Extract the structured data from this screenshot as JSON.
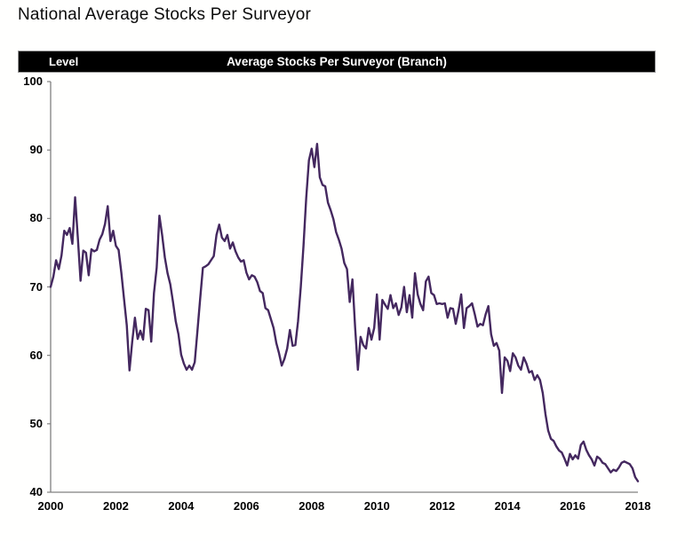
{
  "page": {
    "title": "National Average Stocks Per Surveyor",
    "background": "#fffffe"
  },
  "header_bar": {
    "left_label": "Level",
    "center_label": "Average Stocks Per Surveyor (Branch)",
    "background": "#000000",
    "text_color": "#ffffff"
  },
  "chart_data": {
    "type": "line",
    "title": "Average Stocks Per Surveyor (Branch)",
    "ylabel": "Level",
    "xlabel": "",
    "legend_position": "none",
    "grid": false,
    "xlim": [
      2000,
      2018
    ],
    "ylim": [
      40,
      100
    ],
    "x_start_year": 2000,
    "points_per_year": 12,
    "x_tick_years": [
      2000,
      2002,
      2004,
      2006,
      2008,
      2010,
      2012,
      2014,
      2016,
      2018
    ],
    "x_tick_labels": [
      "2000",
      "2002",
      "2004",
      "2006",
      "2008",
      "2010",
      "2012",
      "2014",
      "2016",
      "2018"
    ],
    "y_tick_values": [
      100,
      90,
      80,
      70,
      60,
      50,
      40
    ],
    "y_tick_labels": [
      "100",
      "90",
      "80",
      "70",
      "60",
      "50",
      "40"
    ],
    "line_color": "#44285f",
    "axis_color": "#808080",
    "series_name": "National average stocks per surveyor (branch), monthly",
    "values": [
      70.0,
      71.5,
      73.9,
      72.6,
      74.6,
      78.2,
      77.6,
      78.6,
      76.3,
      83.1,
      77.2,
      70.9,
      75.3,
      75.0,
      71.7,
      75.5,
      75.2,
      75.4,
      76.9,
      77.7,
      79.2,
      81.8,
      76.7,
      78.2,
      76.0,
      75.4,
      72.1,
      68.2,
      64.4,
      57.8,
      62.0,
      65.5,
      62.4,
      63.6,
      62.3,
      66.8,
      66.6,
      62.0,
      69.1,
      72.8,
      80.4,
      77.6,
      74.3,
      72.0,
      70.4,
      67.8,
      65.0,
      63.1,
      60.1,
      58.8,
      57.9,
      58.5,
      57.9,
      59.0,
      63.6,
      68.3,
      72.8,
      73.0,
      73.3,
      73.9,
      74.5,
      77.6,
      79.1,
      77.2,
      76.7,
      77.6,
      75.6,
      76.5,
      75.2,
      74.3,
      73.7,
      73.9,
      72.1,
      71.1,
      71.7,
      71.5,
      70.7,
      69.4,
      69.1,
      66.9,
      66.6,
      65.3,
      64.0,
      61.8,
      60.3,
      58.5,
      59.5,
      61.0,
      63.7,
      61.4,
      61.5,
      65.0,
      70.0,
      76.0,
      83.0,
      88.5,
      90.2,
      87.5,
      90.9,
      86.0,
      84.9,
      84.7,
      82.3,
      81.2,
      79.9,
      78.0,
      76.9,
      75.6,
      73.5,
      72.6,
      67.8,
      71.1,
      64.0,
      57.9,
      62.7,
      61.5,
      61.0,
      64.0,
      62.3,
      64.0,
      68.9,
      62.3,
      68.1,
      67.4,
      66.8,
      68.8,
      66.9,
      67.6,
      65.9,
      67.0,
      70.0,
      66.3,
      68.8,
      65.5,
      72.0,
      68.9,
      67.5,
      66.6,
      70.8,
      71.5,
      69.1,
      68.8,
      67.5,
      67.6,
      67.5,
      67.6,
      65.5,
      66.9,
      66.8,
      64.6,
      66.5,
      68.9,
      64.0,
      66.9,
      67.2,
      67.6,
      66.0,
      64.2,
      64.6,
      64.4,
      66.0,
      67.2,
      63.1,
      61.4,
      61.8,
      60.7,
      54.5,
      59.7,
      59.2,
      57.7,
      60.3,
      59.7,
      58.5,
      57.9,
      59.7,
      58.8,
      57.5,
      57.7,
      56.4,
      57.1,
      56.4,
      54.5,
      51.4,
      49.0,
      47.8,
      47.5,
      46.7,
      46.1,
      45.8,
      44.9,
      43.9,
      45.6,
      44.8,
      45.4,
      44.9,
      46.9,
      47.4,
      46.2,
      45.4,
      44.8,
      43.9,
      45.2,
      44.9,
      44.3,
      44.1,
      43.5,
      42.9,
      43.3,
      43.1,
      43.6,
      44.3,
      44.5,
      44.3,
      44.1,
      43.5,
      42.2,
      41.6
    ]
  }
}
